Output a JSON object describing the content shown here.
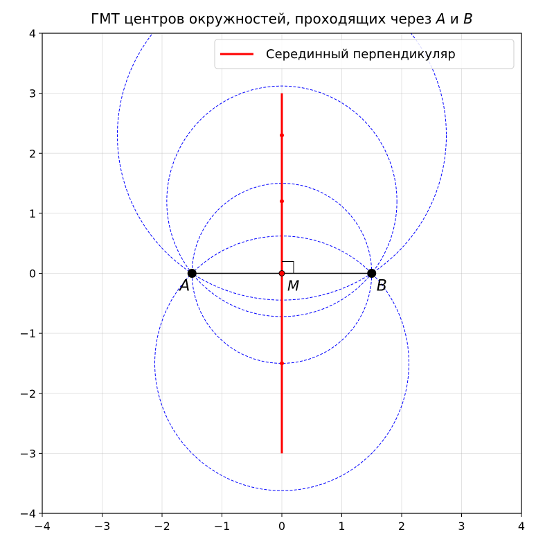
{
  "chart_data": {
    "type": "scatter",
    "title": "ГМТ центров окружностей, проходящих через A и B",
    "title_main": "ГМТ центров окружностей, проходящих через ",
    "title_a": "A",
    "title_and": " и ",
    "title_b": "B",
    "xlim": [
      -4,
      4
    ],
    "ylim": [
      -4,
      4
    ],
    "xticks": [
      -4,
      -3,
      -2,
      -1,
      0,
      1,
      2,
      3,
      4
    ],
    "yticks": [
      -4,
      -3,
      -2,
      -1,
      0,
      1,
      2,
      3,
      4
    ],
    "grid": true,
    "legend": {
      "position": "top-right",
      "entries": [
        {
          "label": "Серединный перпендикуляр",
          "color": "#ff0000"
        }
      ]
    },
    "points": [
      {
        "name": "A",
        "x": -1.5,
        "y": 0
      },
      {
        "name": "B",
        "x": 1.5,
        "y": 0
      },
      {
        "name": "M",
        "x": 0,
        "y": 0
      }
    ],
    "segment_ab": {
      "x": [
        -1.5,
        1.5
      ],
      "y": [
        0,
        0
      ],
      "color": "#000000"
    },
    "perpendicular_bisector": {
      "x": [
        0,
        0
      ],
      "y": [
        -3,
        3
      ],
      "color": "#ff0000"
    },
    "centers": [
      {
        "x": 0,
        "y": 2.3
      },
      {
        "x": 0,
        "y": 1.2
      },
      {
        "x": 0,
        "y": 0
      },
      {
        "x": 0,
        "y": -1.5
      }
    ],
    "circle_color": "#0000ff",
    "axis_labels": {
      "xlabel": "",
      "ylabel": ""
    }
  }
}
